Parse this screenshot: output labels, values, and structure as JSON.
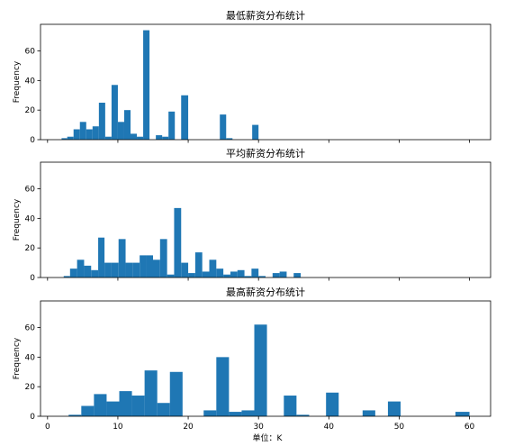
{
  "figure": {
    "xlabel": "单位：K",
    "ylabel": "Frequency",
    "bar_color": "#1f77b4",
    "x_ticks": [
      0,
      10,
      20,
      30,
      40,
      50,
      60
    ],
    "y_ticks": [
      0,
      20,
      40,
      60
    ]
  },
  "chart_data": [
    {
      "type": "bar",
      "title": "最低薪资分布统计",
      "ylabel": "Frequency",
      "xlim": [
        -1,
        63
      ],
      "ylim": [
        0,
        78
      ],
      "bins": [
        {
          "x0": 2.0,
          "x1": 2.8,
          "y": 1
        },
        {
          "x0": 2.8,
          "x1": 3.7,
          "y": 2
        },
        {
          "x0": 3.7,
          "x1": 4.6,
          "y": 7
        },
        {
          "x0": 4.6,
          "x1": 5.5,
          "y": 12
        },
        {
          "x0": 5.5,
          "x1": 6.4,
          "y": 7
        },
        {
          "x0": 6.4,
          "x1": 7.3,
          "y": 9
        },
        {
          "x0": 7.3,
          "x1": 8.2,
          "y": 25
        },
        {
          "x0": 8.2,
          "x1": 9.1,
          "y": 2
        },
        {
          "x0": 9.1,
          "x1": 10.0,
          "y": 37
        },
        {
          "x0": 10.0,
          "x1": 10.9,
          "y": 12
        },
        {
          "x0": 10.9,
          "x1": 11.8,
          "y": 20
        },
        {
          "x0": 11.8,
          "x1": 12.7,
          "y": 4
        },
        {
          "x0": 12.7,
          "x1": 13.6,
          "y": 2
        },
        {
          "x0": 13.6,
          "x1": 14.5,
          "y": 74
        },
        {
          "x0": 15.4,
          "x1": 16.3,
          "y": 3
        },
        {
          "x0": 16.3,
          "x1": 17.2,
          "y": 2
        },
        {
          "x0": 17.2,
          "x1": 18.1,
          "y": 19
        },
        {
          "x0": 19.0,
          "x1": 20.0,
          "y": 30
        },
        {
          "x0": 24.5,
          "x1": 25.4,
          "y": 17
        },
        {
          "x0": 25.4,
          "x1": 26.3,
          "y": 1
        },
        {
          "x0": 29.1,
          "x1": 30.0,
          "y": 10
        }
      ]
    },
    {
      "type": "bar",
      "title": "平均薪资分布统计",
      "ylabel": "Frequency",
      "xlim": [
        -1,
        63
      ],
      "ylim": [
        0,
        78
      ],
      "bins": [
        {
          "x0": 2.3,
          "x1": 3.2,
          "y": 1
        },
        {
          "x0": 3.2,
          "x1": 4.2,
          "y": 6
        },
        {
          "x0": 4.2,
          "x1": 5.2,
          "y": 12
        },
        {
          "x0": 5.2,
          "x1": 6.2,
          "y": 8
        },
        {
          "x0": 6.2,
          "x1": 7.2,
          "y": 5
        },
        {
          "x0": 7.2,
          "x1": 8.1,
          "y": 27
        },
        {
          "x0": 8.1,
          "x1": 9.1,
          "y": 10
        },
        {
          "x0": 9.1,
          "x1": 10.1,
          "y": 10
        },
        {
          "x0": 10.1,
          "x1": 11.1,
          "y": 26
        },
        {
          "x0": 11.1,
          "x1": 12.1,
          "y": 10
        },
        {
          "x0": 12.1,
          "x1": 13.1,
          "y": 10
        },
        {
          "x0": 13.1,
          "x1": 14.1,
          "y": 15
        },
        {
          "x0": 14.1,
          "x1": 15.0,
          "y": 15
        },
        {
          "x0": 15.0,
          "x1": 16.0,
          "y": 12
        },
        {
          "x0": 16.0,
          "x1": 17.0,
          "y": 26
        },
        {
          "x0": 17.0,
          "x1": 18.0,
          "y": 2
        },
        {
          "x0": 18.0,
          "x1": 19.0,
          "y": 47
        },
        {
          "x0": 19.0,
          "x1": 20.0,
          "y": 10
        },
        {
          "x0": 20.0,
          "x1": 21.0,
          "y": 3
        },
        {
          "x0": 21.0,
          "x1": 22.0,
          "y": 17
        },
        {
          "x0": 22.0,
          "x1": 23.0,
          "y": 4
        },
        {
          "x0": 23.0,
          "x1": 24.0,
          "y": 12
        },
        {
          "x0": 24.0,
          "x1": 25.0,
          "y": 6
        },
        {
          "x0": 25.0,
          "x1": 26.0,
          "y": 2
        },
        {
          "x0": 26.0,
          "x1": 27.0,
          "y": 4
        },
        {
          "x0": 27.0,
          "x1": 28.0,
          "y": 5
        },
        {
          "x0": 28.0,
          "x1": 29.0,
          "y": 1
        },
        {
          "x0": 29.0,
          "x1": 30.0,
          "y": 6
        },
        {
          "x0": 30.0,
          "x1": 31.0,
          "y": 1
        },
        {
          "x0": 32.0,
          "x1": 33.0,
          "y": 3
        },
        {
          "x0": 33.0,
          "x1": 34.0,
          "y": 4
        },
        {
          "x0": 35.0,
          "x1": 36.0,
          "y": 3
        }
      ]
    },
    {
      "type": "bar",
      "title": "最高薪资分布统计",
      "ylabel": "Frequency",
      "xlabel": "单位：K",
      "xlim": [
        -1,
        63
      ],
      "ylim": [
        0,
        78
      ],
      "bins": [
        {
          "x0": 3.0,
          "x1": 4.8,
          "y": 1
        },
        {
          "x0": 4.8,
          "x1": 6.6,
          "y": 7
        },
        {
          "x0": 6.6,
          "x1": 8.4,
          "y": 15
        },
        {
          "x0": 8.4,
          "x1": 10.2,
          "y": 10
        },
        {
          "x0": 10.2,
          "x1": 12.0,
          "y": 17
        },
        {
          "x0": 12.0,
          "x1": 13.8,
          "y": 14
        },
        {
          "x0": 13.8,
          "x1": 15.6,
          "y": 31
        },
        {
          "x0": 15.6,
          "x1": 17.4,
          "y": 9
        },
        {
          "x0": 17.4,
          "x1": 19.2,
          "y": 30
        },
        {
          "x0": 22.2,
          "x1": 24.0,
          "y": 4
        },
        {
          "x0": 24.0,
          "x1": 25.8,
          "y": 40
        },
        {
          "x0": 25.8,
          "x1": 27.6,
          "y": 3
        },
        {
          "x0": 27.6,
          "x1": 29.4,
          "y": 4
        },
        {
          "x0": 29.4,
          "x1": 31.2,
          "y": 62
        },
        {
          "x0": 33.6,
          "x1": 35.4,
          "y": 14
        },
        {
          "x0": 35.4,
          "x1": 37.2,
          "y": 1
        },
        {
          "x0": 39.6,
          "x1": 41.4,
          "y": 16
        },
        {
          "x0": 44.8,
          "x1": 46.6,
          "y": 4
        },
        {
          "x0": 48.4,
          "x1": 50.2,
          "y": 10
        },
        {
          "x0": 58.0,
          "x1": 60.0,
          "y": 3
        }
      ]
    }
  ]
}
